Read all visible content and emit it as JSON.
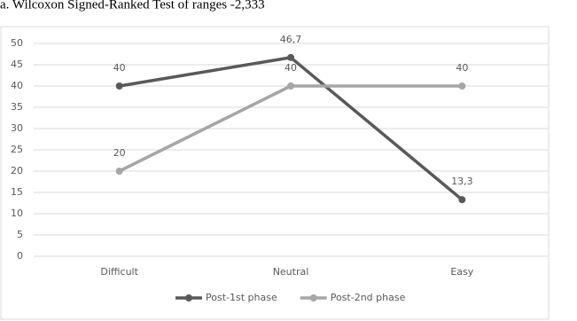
{
  "caption": "a. Wilcoxon Signed-Ranked Test of ranges -2,333",
  "chart_data": {
    "type": "line",
    "categories": [
      "Difficult",
      "Neutral",
      "Easy"
    ],
    "series": [
      {
        "name": "Post-1st phase",
        "color": "#595959",
        "values": [
          40,
          46.7,
          13.3
        ],
        "value_labels": [
          "40",
          "46,7",
          "13,3"
        ]
      },
      {
        "name": "Post-2nd phase",
        "color": "#a6a6a6",
        "values": [
          20,
          40,
          40
        ]
      }
    ],
    "ylim": [
      0,
      50
    ],
    "yticks": [
      0,
      5,
      10,
      15,
      20,
      25,
      30,
      35,
      40,
      45,
      50
    ],
    "grid": true,
    "legend": "bottom"
  }
}
